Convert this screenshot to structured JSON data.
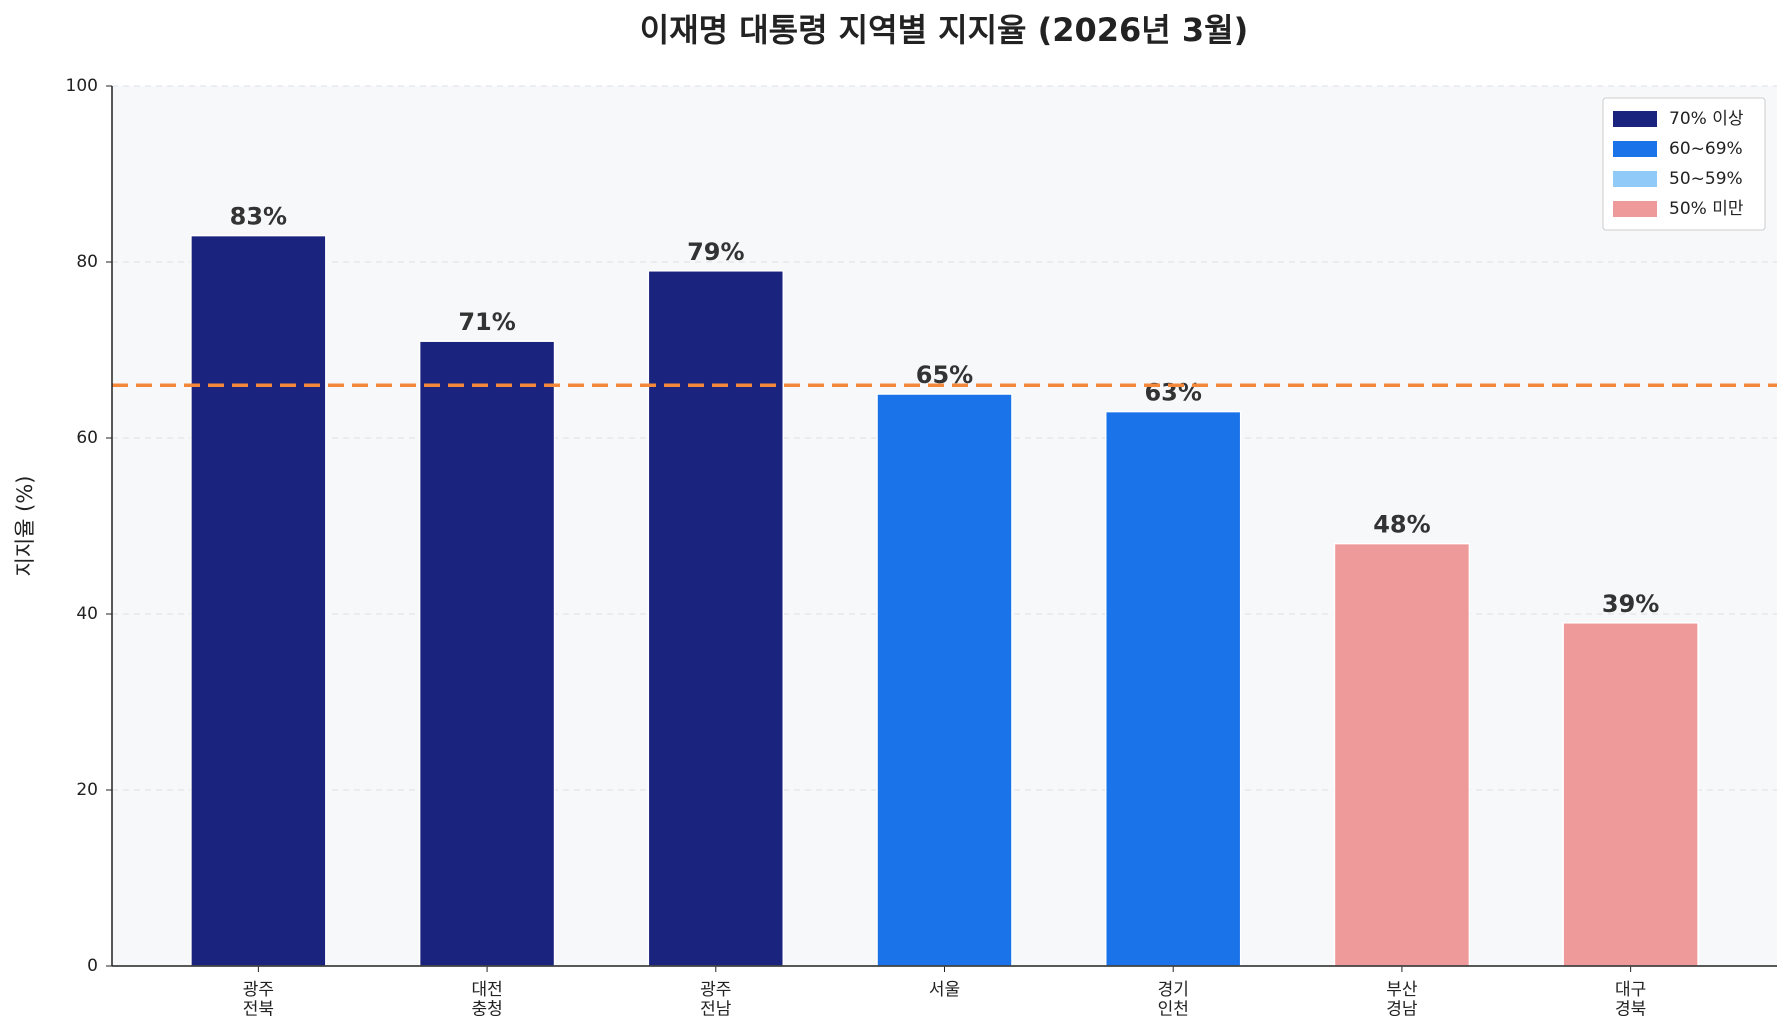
{
  "chart_data": {
    "type": "bar",
    "title": "이재명 대통령 지역별 지지율 (2026년 3월)",
    "y_label": "지지율 (%)",
    "categories": [
      "광주\n전북",
      "대전\n충청",
      "광주\n전남",
      "서울",
      "경기\n인천",
      "부산\n경남",
      "대구\n경북"
    ],
    "values": [
      83,
      71,
      79,
      65,
      63,
      48,
      39
    ],
    "value_labels": [
      "83%",
      "71%",
      "79%",
      "65%",
      "63%",
      "48%",
      "39%"
    ],
    "colors": [
      "#1a237e",
      "#1a237e",
      "#1a237e",
      "#1a73e8",
      "#1a73e8",
      "#ef9a9a",
      "#ef9a9a"
    ],
    "legend": [
      {
        "name": "70% 이상",
        "color": "#1a237e"
      },
      {
        "name": "60~69%",
        "color": "#1a73e8"
      },
      {
        "name": "50~59%",
        "color": "#90caf9"
      },
      {
        "name": "50% 미만",
        "color": "#ef9a9a"
      }
    ],
    "legend_position": "upper right",
    "reference_line": {
      "value": 66,
      "color": "#f4883a"
    },
    "ylim": [
      0,
      100
    ],
    "yticks": [
      0,
      20,
      40,
      60,
      80,
      100
    ],
    "grid": true
  }
}
